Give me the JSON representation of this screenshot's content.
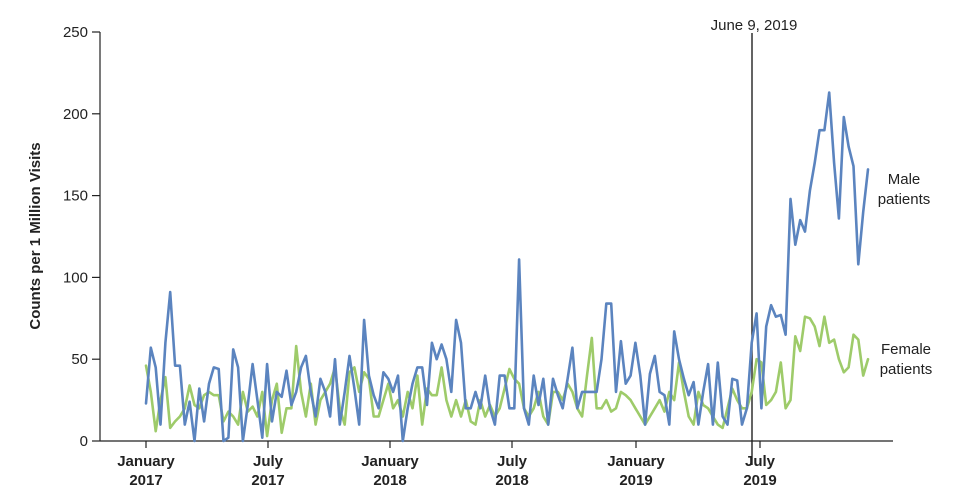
{
  "chart_data": {
    "type": "line",
    "title": "",
    "ylabel": "Counts per 1 Million Visits",
    "xlabel": "",
    "ylim": [
      0,
      250
    ],
    "yticks": [
      0,
      50,
      100,
      150,
      200,
      250
    ],
    "xlim": [
      "2017-01",
      "2019-12"
    ],
    "xtick_labels": [
      {
        "line1": "January",
        "line2": "2017"
      },
      {
        "line1": "July",
        "line2": "2017"
      },
      {
        "line1": "January",
        "line2": "2018"
      },
      {
        "line1": "July",
        "line2": "2018"
      },
      {
        "line1": "January",
        "line2": "2019"
      },
      {
        "line1": "July",
        "line2": "2019"
      }
    ],
    "event": {
      "label": "June 9, 2019",
      "date": "2019-06-09"
    },
    "grid": false,
    "series": [
      {
        "name": "Male patients",
        "label_line1": "Male",
        "label_line2": "patients",
        "color": "#5b84bf",
        "values": [
          23,
          57,
          45,
          10,
          60,
          91,
          46,
          46,
          10,
          24,
          0,
          32,
          12,
          35,
          45,
          44,
          0,
          2,
          56,
          45,
          0,
          22,
          47,
          25,
          2,
          47,
          12,
          30,
          27,
          43,
          22,
          30,
          45,
          52,
          30,
          15,
          38,
          30,
          15,
          50,
          10,
          30,
          52,
          32,
          10,
          74,
          40,
          28,
          20,
          42,
          38,
          30,
          40,
          0,
          20,
          35,
          45,
          45,
          22,
          60,
          50,
          59,
          50,
          30,
          74,
          60,
          20,
          20,
          30,
          20,
          40,
          20,
          10,
          40,
          40,
          20,
          20,
          111,
          20,
          10,
          40,
          22,
          38,
          10,
          38,
          28,
          20,
          38,
          57,
          20,
          30,
          30,
          30,
          30,
          50,
          84,
          84,
          30,
          61,
          35,
          40,
          60,
          40,
          10,
          41,
          52,
          30,
          28,
          10,
          67,
          50,
          38,
          28,
          36,
          10,
          30,
          47,
          10,
          48,
          15,
          10,
          38,
          37,
          10,
          20,
          60,
          78,
          20,
          70,
          83,
          76,
          77,
          65,
          148,
          120,
          135,
          128,
          153,
          170,
          190,
          190,
          213,
          170,
          136,
          198,
          180,
          168,
          108,
          140,
          166
        ]
      },
      {
        "name": "Female patients",
        "label_line1": "Female",
        "label_line2": "patients",
        "color": "#9ecb6a",
        "values": [
          46,
          30,
          6,
          25,
          39,
          8,
          12,
          15,
          20,
          34,
          22,
          20,
          28,
          30,
          28,
          28,
          12,
          18,
          15,
          10,
          30,
          18,
          21,
          15,
          30,
          3,
          25,
          35,
          5,
          20,
          20,
          58,
          30,
          15,
          35,
          10,
          25,
          30,
          35,
          45,
          20,
          10,
          42,
          45,
          30,
          42,
          38,
          15,
          15,
          25,
          35,
          20,
          25,
          15,
          30,
          20,
          40,
          10,
          32,
          28,
          28,
          45,
          25,
          15,
          25,
          15,
          25,
          12,
          10,
          25,
          15,
          22,
          15,
          20,
          32,
          44,
          38,
          35,
          20,
          15,
          20,
          30,
          15,
          10,
          30,
          30,
          25,
          35,
          30,
          20,
          15,
          40,
          63,
          20,
          20,
          25,
          18,
          20,
          30,
          28,
          25,
          20,
          15,
          10,
          15,
          20,
          25,
          18,
          30,
          25,
          48,
          30,
          15,
          10,
          30,
          22,
          20,
          15,
          10,
          8,
          20,
          32,
          25,
          20,
          20,
          30,
          50,
          48,
          22,
          25,
          30,
          48,
          20,
          25,
          64,
          55,
          76,
          75,
          70,
          58,
          76,
          60,
          62,
          50,
          42,
          45,
          65,
          62,
          40,
          50
        ]
      }
    ]
  }
}
